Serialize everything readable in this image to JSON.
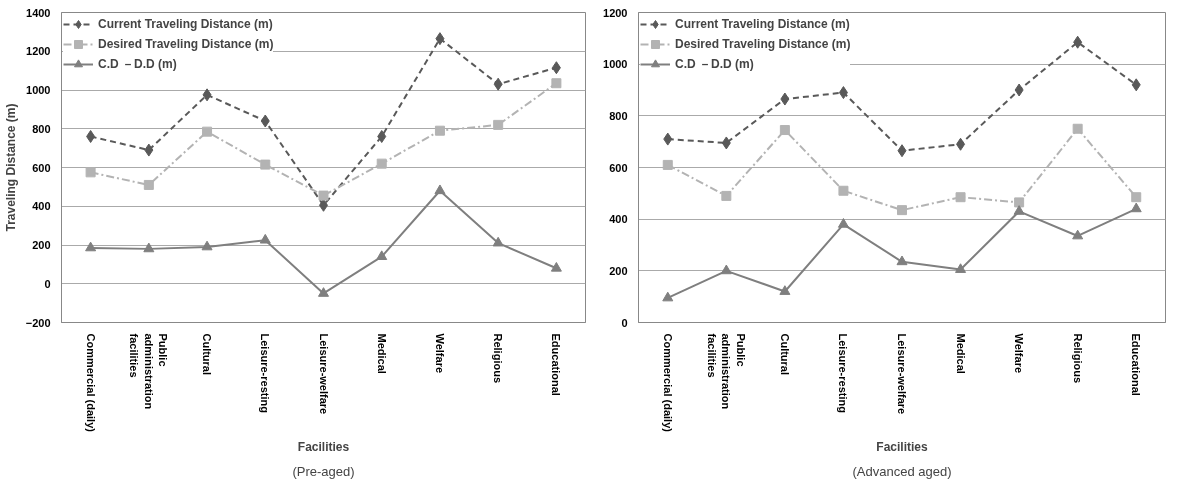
{
  "chart_data": [
    {
      "type": "line",
      "xlabel": "Facilities",
      "ylabel": "Traveling Distance (m)",
      "categories": [
        "Commercial (daily)",
        "Public administration facilities",
        "Cultural",
        "Leisure-resting",
        "Leisure-welfare",
        "Medical",
        "Welfare",
        "Religious",
        "Educational"
      ],
      "series": [
        {
          "name": "Current Traveling Distance (m)",
          "color": "#595959",
          "marker": "diamond",
          "line_style": "dashed",
          "values": [
            760,
            690,
            975,
            840,
            405,
            760,
            1265,
            1030,
            1115
          ]
        },
        {
          "name": "Desired Traveling Distance (m)",
          "color": "#b3b3b3",
          "marker": "square",
          "line_style": "dashdot",
          "values": [
            575,
            510,
            785,
            615,
            455,
            620,
            790,
            820,
            1035
          ]
        },
        {
          "name": "C.D －D.D (m)",
          "color": "#7f7f7f",
          "marker": "triangle",
          "line_style": "solid",
          "values": [
            185,
            180,
            190,
            225,
            -50,
            140,
            480,
            210,
            80
          ]
        }
      ],
      "ylim": [
        -200,
        1400
      ],
      "yticks": [
        -200,
        0,
        200,
        400,
        600,
        800,
        1000,
        1200,
        1400
      ],
      "grid": "y",
      "legend": "top left",
      "annotations": [
        "(Pre-aged)"
      ]
    },
    {
      "type": "line",
      "xlabel": "Facilities",
      "categories": [
        "Commercial (daily)",
        "Public administration facilities",
        "Cultural",
        "Leisure-resting",
        "Leisure-welfare",
        "Medical",
        "Welfare",
        "Religious",
        "Educational"
      ],
      "series": [
        {
          "name": "Current Traveling Distance (m)",
          "color": "#595959",
          "marker": "diamond",
          "line_style": "dashed",
          "values": [
            710,
            695,
            865,
            890,
            665,
            690,
            900,
            1085,
            920
          ]
        },
        {
          "name": "Desired Traveling Distance (m)",
          "color": "#b3b3b3",
          "marker": "square",
          "line_style": "dashdot",
          "values": [
            610,
            490,
            745,
            510,
            435,
            485,
            465,
            750,
            485
          ]
        },
        {
          "name": "C.D －D.D (m)",
          "color": "#7f7f7f",
          "marker": "triangle",
          "line_style": "solid",
          "values": [
            95,
            200,
            120,
            380,
            235,
            205,
            430,
            335,
            440
          ]
        }
      ],
      "ylim": [
        0,
        1200
      ],
      "yticks": [
        0,
        200,
        400,
        600,
        800,
        1000,
        1200
      ],
      "grid": "y",
      "legend": "top left",
      "annotations": [
        "(Advanced aged)"
      ]
    }
  ]
}
